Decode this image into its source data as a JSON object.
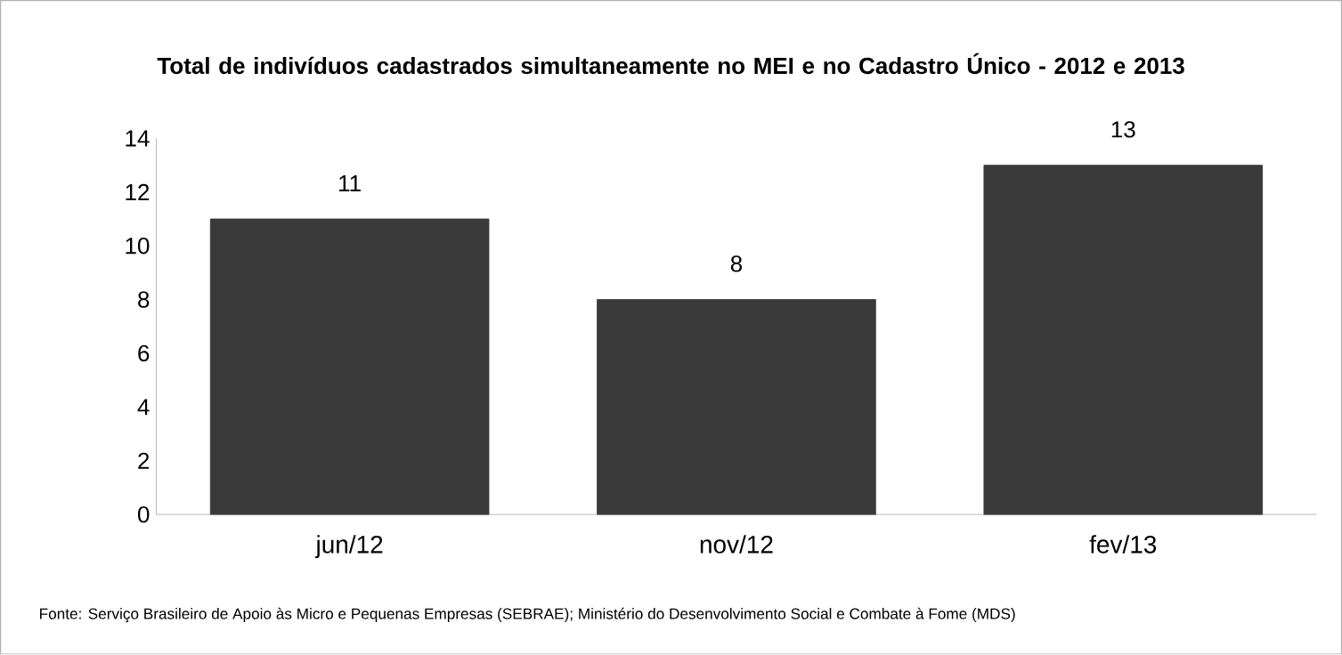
{
  "chart_data": {
    "type": "bar",
    "title": "Total de indivíduos cadastrados simultaneamente no MEI e no Cadastro Único - 2012 e 2013",
    "categories": [
      "jun/12",
      "nov/12",
      "fev/13"
    ],
    "values": [
      11,
      8,
      13
    ],
    "color": "#3a3a3a",
    "ylim": [
      0,
      14
    ],
    "yticks": [
      0,
      2,
      4,
      6,
      8,
      10,
      12,
      14
    ],
    "data_labels": true,
    "grid": false,
    "annotations": [
      "Fonte:  Serviço Brasileiro de Apoio às Micro e Pequenas Empresas (SEBRAE); Ministério do Desenvolvimento Social e Combate à Fome (MDS)"
    ]
  }
}
